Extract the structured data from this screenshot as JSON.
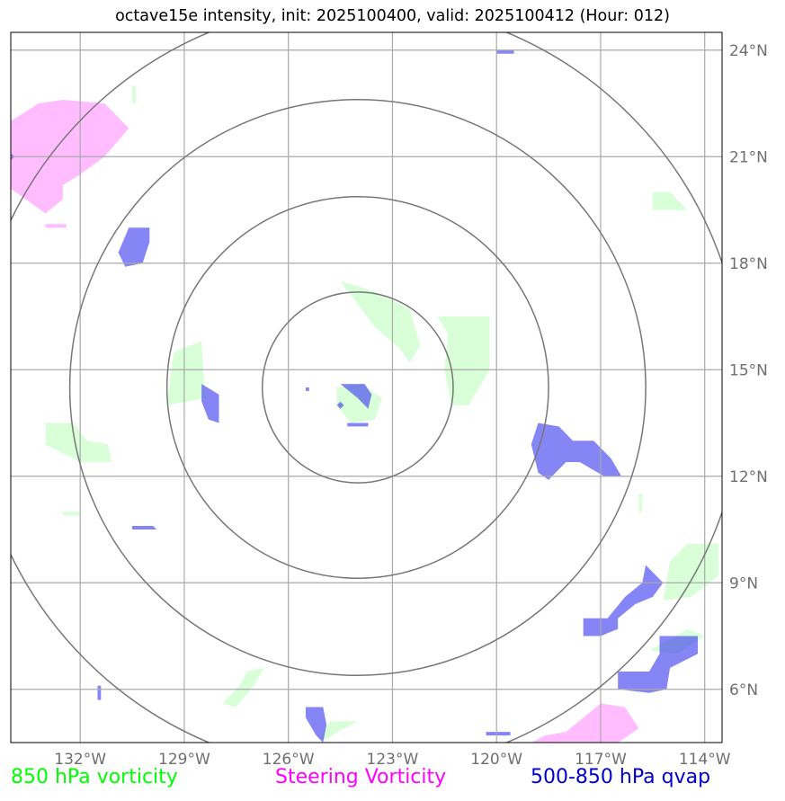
{
  "title": "octave15e intensity, init: 2025100400, valid: 2025100412 (Hour: 012)",
  "map": {
    "lon_range": [
      -134,
      -113.5
    ],
    "lat_range": [
      4.5,
      24.5
    ],
    "lon_ticks": [
      -132,
      -129,
      -126,
      -123,
      -120,
      -117,
      -114
    ],
    "lat_ticks": [
      6,
      9,
      12,
      15,
      18,
      21,
      24
    ],
    "lon_tick_labels": [
      "132°W",
      "129°W",
      "126°W",
      "123°W",
      "120°W",
      "117°W",
      "114°W"
    ],
    "lat_tick_labels": [
      "6°N",
      "9°N",
      "12°N",
      "15°N",
      "18°N",
      "21°N",
      "24°N"
    ],
    "gridlines": true,
    "storm_center": {
      "lon": -124,
      "lat": 14.5
    },
    "range_rings_deg": [
      2.75,
      5.5,
      8.3,
      11.1
    ]
  },
  "legend": {
    "green_label": "850 hPa vorticity",
    "magenta_label": "Steering Vorticity",
    "blue_label": "500-850 hPa qvap"
  },
  "colors": {
    "green_fill": "#ccffcc",
    "magenta_fill": "#ff99ff",
    "blue_fill": "#3333ee",
    "green_text": "#00ff00",
    "magenta_text": "#ff00ff",
    "blue_text": "#0000cc",
    "grid": "#a9a9a9",
    "ring": "#777777"
  },
  "fields": {
    "green": [
      [
        [
          -124.5,
          17.5
        ],
        [
          -123.5,
          17.2
        ],
        [
          -122.5,
          16.7
        ],
        [
          -122.2,
          15.7
        ],
        [
          -122.5,
          15.2
        ],
        [
          -122.8,
          15.6
        ],
        [
          -123.5,
          16.2
        ],
        [
          -124.2,
          17.1
        ]
      ],
      [
        [
          -121.7,
          16.5
        ],
        [
          -120.2,
          16.5
        ],
        [
          -120.2,
          15.0
        ],
        [
          -120.8,
          14.0
        ],
        [
          -121.3,
          14.0
        ],
        [
          -121.5,
          15.0
        ],
        [
          -121.4,
          16.0
        ]
      ],
      [
        [
          -124.6,
          14.5
        ],
        [
          -123.9,
          14.6
        ],
        [
          -123.3,
          14.2
        ],
        [
          -123.5,
          13.6
        ],
        [
          -124.2,
          13.5
        ],
        [
          -124.6,
          14.0
        ]
      ],
      [
        [
          -129.3,
          15.5
        ],
        [
          -128.5,
          15.8
        ],
        [
          -128.4,
          14.2
        ],
        [
          -129.5,
          14.0
        ],
        [
          -129.4,
          14.8
        ]
      ],
      [
        [
          -115.5,
          20.0
        ],
        [
          -115.0,
          20.0
        ],
        [
          -114.5,
          19.5
        ],
        [
          -115.5,
          19.5
        ]
      ],
      [
        [
          -133.0,
          13.5
        ],
        [
          -132.2,
          13.5
        ],
        [
          -131.8,
          13.0
        ],
        [
          -131.2,
          12.9
        ],
        [
          -131.1,
          12.4
        ],
        [
          -132.0,
          12.4
        ],
        [
          -133.0,
          12.9
        ]
      ],
      [
        [
          -114.5,
          10.1
        ],
        [
          -113.6,
          10.1
        ],
        [
          -113.6,
          9.2
        ],
        [
          -114.4,
          8.6
        ],
        [
          -115.2,
          8.5
        ],
        [
          -115.0,
          9.6
        ]
      ],
      [
        [
          -114.0,
          7.5
        ],
        [
          -114.5,
          7.7
        ],
        [
          -115.0,
          7.4
        ],
        [
          -115.6,
          7.1
        ],
        [
          -114.8,
          7.0
        ]
      ],
      [
        [
          -127.2,
          6.5
        ],
        [
          -126.7,
          6.6
        ],
        [
          -127.0,
          6.1
        ],
        [
          -127.5,
          5.5
        ],
        [
          -127.9,
          5.6
        ],
        [
          -127.4,
          6.1
        ]
      ],
      [
        [
          -124.8,
          5.1
        ],
        [
          -124.0,
          5.1
        ],
        [
          -124.4,
          4.9
        ],
        [
          -124.9,
          4.6
        ],
        [
          -125.1,
          4.6
        ]
      ],
      [
        [
          -130.5,
          23.0
        ],
        [
          -130.4,
          23.0
        ],
        [
          -130.4,
          22.5
        ],
        [
          -130.5,
          22.5
        ]
      ],
      [
        [
          -132.5,
          11.0
        ],
        [
          -132.0,
          11.0
        ],
        [
          -132.0,
          10.9
        ],
        [
          -132.5,
          10.9
        ]
      ],
      [
        [
          -115.9,
          11.5
        ],
        [
          -115.8,
          11.5
        ],
        [
          -115.8,
          11.0
        ],
        [
          -115.9,
          11.0
        ]
      ]
    ],
    "magenta": [
      [
        [
          -134.0,
          22.0
        ],
        [
          -133.2,
          22.5
        ],
        [
          -132.5,
          22.6
        ],
        [
          -131.3,
          22.5
        ],
        [
          -130.6,
          21.8
        ],
        [
          -131.3,
          21.0
        ],
        [
          -132.0,
          20.5
        ],
        [
          -132.5,
          20.2
        ],
        [
          -132.5,
          19.8
        ],
        [
          -133.0,
          19.4
        ],
        [
          -134.0,
          20.1
        ]
      ],
      [
        [
          -118.0,
          4.8
        ],
        [
          -117.0,
          5.6
        ],
        [
          -116.3,
          5.5
        ],
        [
          -115.9,
          4.9
        ],
        [
          -116.5,
          4.5
        ],
        [
          -119.0,
          4.5
        ],
        [
          -118.6,
          4.7
        ]
      ],
      [
        [
          -133.0,
          19.1
        ],
        [
          -132.4,
          19.1
        ],
        [
          -132.4,
          19.0
        ],
        [
          -133.0,
          19.0
        ]
      ]
    ],
    "blue": [
      [
        [
          -130.0,
          19.0
        ],
        [
          -130.6,
          19.0
        ],
        [
          -130.9,
          18.3
        ],
        [
          -130.7,
          17.9
        ],
        [
          -130.2,
          18.0
        ],
        [
          -130.0,
          18.6
        ]
      ],
      [
        [
          -128.5,
          14.6
        ],
        [
          -128.0,
          14.3
        ],
        [
          -128.0,
          13.5
        ],
        [
          -128.3,
          13.6
        ],
        [
          -128.5,
          14.1
        ]
      ],
      [
        [
          -124.5,
          14.6
        ],
        [
          -123.8,
          14.6
        ],
        [
          -123.6,
          14.3
        ],
        [
          -123.7,
          13.9
        ],
        [
          -124.0,
          14.2
        ]
      ],
      [
        [
          -124.3,
          13.5
        ],
        [
          -123.7,
          13.5
        ],
        [
          -123.7,
          13.4
        ],
        [
          -124.3,
          13.4
        ]
      ],
      [
        [
          -124.5,
          14.1
        ],
        [
          -124.4,
          14.0
        ],
        [
          -124.5,
          13.9
        ],
        [
          -124.6,
          14.0
        ]
      ],
      [
        [
          -118.8,
          13.5
        ],
        [
          -118.2,
          13.4
        ],
        [
          -117.8,
          13.0
        ],
        [
          -117.2,
          13.0
        ],
        [
          -116.7,
          12.5
        ],
        [
          -116.4,
          12.0
        ],
        [
          -116.9,
          12.0
        ],
        [
          -117.6,
          12.4
        ],
        [
          -118.0,
          12.4
        ],
        [
          -118.5,
          11.9
        ],
        [
          -118.8,
          12.1
        ],
        [
          -119.0,
          12.9
        ]
      ],
      [
        [
          -115.7,
          9.5
        ],
        [
          -115.2,
          9.0
        ],
        [
          -115.5,
          8.6
        ],
        [
          -116.0,
          8.4
        ],
        [
          -116.5,
          8.0
        ],
        [
          -116.5,
          7.7
        ],
        [
          -117.0,
          7.5
        ],
        [
          -117.5,
          7.5
        ],
        [
          -117.5,
          8.0
        ],
        [
          -116.8,
          8.0
        ],
        [
          -116.3,
          8.6
        ],
        [
          -115.8,
          9.0
        ]
      ],
      [
        [
          -115.3,
          7.5
        ],
        [
          -114.2,
          7.5
        ],
        [
          -114.2,
          7.0
        ],
        [
          -115.0,
          6.6
        ],
        [
          -115.1,
          6.0
        ],
        [
          -115.6,
          5.9
        ],
        [
          -116.5,
          6.0
        ],
        [
          -116.5,
          6.5
        ],
        [
          -115.6,
          6.5
        ],
        [
          -115.3,
          7.0
        ]
      ],
      [
        [
          -125.5,
          5.5
        ],
        [
          -125.0,
          5.5
        ],
        [
          -124.9,
          5.0
        ],
        [
          -125.0,
          4.5
        ],
        [
          -125.2,
          4.7
        ],
        [
          -125.5,
          5.2
        ]
      ],
      [
        [
          -130.5,
          10.6
        ],
        [
          -129.9,
          10.6
        ],
        [
          -129.8,
          10.5
        ],
        [
          -130.5,
          10.5
        ]
      ],
      [
        [
          -120.0,
          24.0
        ],
        [
          -119.5,
          24.0
        ],
        [
          -119.5,
          23.9
        ],
        [
          -120.0,
          23.9
        ]
      ],
      [
        [
          -120.3,
          4.8
        ],
        [
          -119.6,
          4.8
        ],
        [
          -119.6,
          4.7
        ],
        [
          -120.3,
          4.7
        ]
      ],
      [
        [
          -134.0,
          21.1
        ],
        [
          -133.9,
          21.0
        ],
        [
          -134.0,
          20.9
        ]
      ],
      [
        [
          -131.5,
          6.1
        ],
        [
          -131.4,
          6.1
        ],
        [
          -131.4,
          5.7
        ],
        [
          -131.5,
          5.7
        ]
      ],
      [
        [
          -125.5,
          14.5
        ],
        [
          -125.4,
          14.5
        ],
        [
          -125.4,
          14.4
        ],
        [
          -125.5,
          14.4
        ]
      ]
    ]
  }
}
